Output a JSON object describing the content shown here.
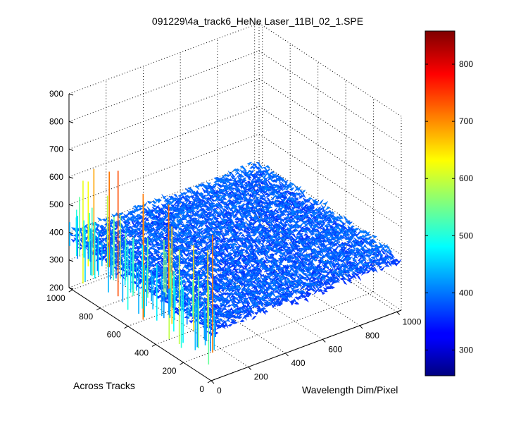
{
  "chart_data": {
    "type": "surface",
    "title": "091229\\4a_track6_HeNe Laser_11Bl_02_1.SPE",
    "xlabel": "Wavelength Dim/Pixel",
    "ylabel": "Across Tracks",
    "zlabel": "",
    "x_range": [
      0,
      1024
    ],
    "y_range": [
      0,
      1024
    ],
    "z_range": [
      200,
      900
    ],
    "x_ticks": [
      "0",
      "200",
      "400",
      "600",
      "800",
      "1000"
    ],
    "y_ticks": [
      "0",
      "200",
      "400",
      "600",
      "800",
      "1000"
    ],
    "z_ticks": [
      "200",
      "300",
      "400",
      "500",
      "600",
      "700",
      "800",
      "900"
    ],
    "baseline_level": 385,
    "noise_amplitude": 25,
    "edge_spike_max": 740,
    "colorbar": {
      "colormap": "jet",
      "range": [
        255,
        858
      ],
      "ticks": [
        "300",
        "400",
        "500",
        "600",
        "700",
        "800"
      ]
    },
    "grid": true
  }
}
